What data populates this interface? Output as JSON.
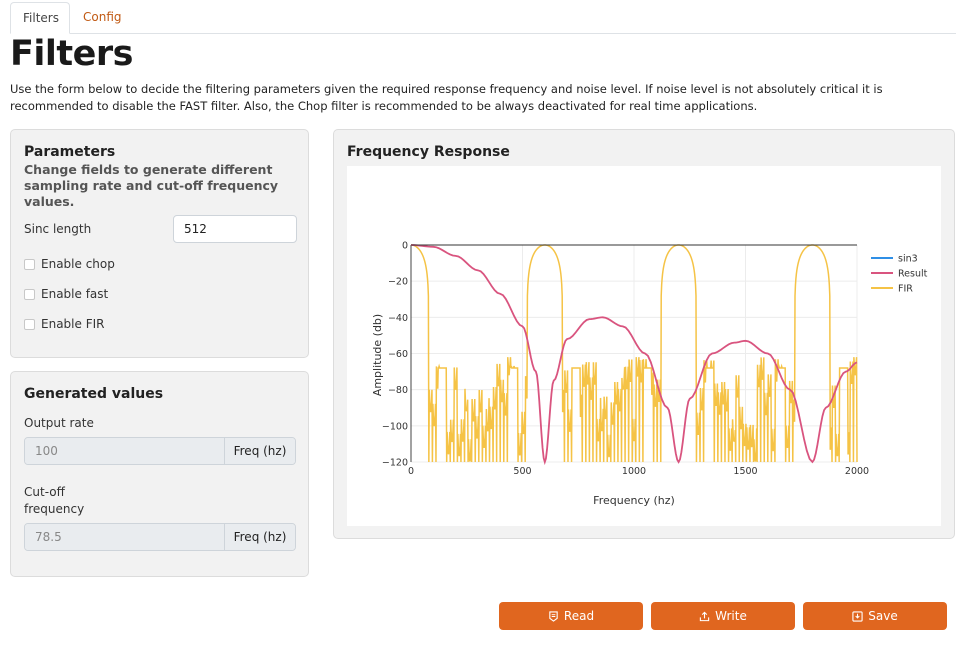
{
  "tabs": [
    {
      "label": "Filters",
      "active": true
    },
    {
      "label": "Config",
      "active": false
    }
  ],
  "page_title": "Filters",
  "intro": "Use the form below to decide the filtering parameters given the required response frequency and noise level. If noise level is not absolutely critical it is recommended to disable the FAST filter. Also, the Chop filter is recommended to be always deactivated for real time applications.",
  "parameters": {
    "title": "Parameters",
    "subtitle": "Change fields to generate different sampling rate and cut-off frequency values.",
    "sinc_length_label": "Sinc length",
    "sinc_length_value": "512",
    "checks": [
      {
        "label": "Enable chop",
        "checked": false
      },
      {
        "label": "Enable fast",
        "checked": false
      },
      {
        "label": "Enable FIR",
        "checked": false
      }
    ]
  },
  "generated": {
    "title": "Generated values",
    "output_rate_label": "Output rate",
    "output_rate_value": "100",
    "output_rate_unit": "Freq (hz)",
    "cutoff_label_line1": "Cut-off",
    "cutoff_label_line2": "frequency",
    "cutoff_value": "78.5",
    "cutoff_unit": "Freq (hz)"
  },
  "chart_title": "Frequency Response",
  "chart_data": {
    "type": "line",
    "title": "",
    "xlabel": "Frequency (hz)",
    "ylabel": "Amplitude (db)",
    "xlim": [
      0,
      2000
    ],
    "ylim": [
      -120,
      0
    ],
    "xticks": [
      "0",
      "500",
      "1000",
      "1500",
      "2000"
    ],
    "yticks": [
      "0",
      "−20",
      "−40",
      "−60",
      "−80",
      "−100",
      "−120"
    ],
    "grid": true,
    "legend_position": "top-right",
    "series": [
      {
        "name": "sin3",
        "color": "#2f8fe6",
        "description_points": [
          [
            0,
            0
          ],
          [
            2000,
            0
          ]
        ]
      },
      {
        "name": "Result",
        "color": "#d9547f",
        "description_points": [
          [
            0,
            0
          ],
          [
            100,
            -1
          ],
          [
            200,
            -6
          ],
          [
            300,
            -14
          ],
          [
            400,
            -27
          ],
          [
            500,
            -45
          ],
          [
            560,
            -70
          ],
          [
            600,
            -120
          ],
          [
            640,
            -75
          ],
          [
            700,
            -52
          ],
          [
            800,
            -41
          ],
          [
            860,
            -40
          ],
          [
            950,
            -45
          ],
          [
            1050,
            -60
          ],
          [
            1150,
            -90
          ],
          [
            1200,
            -120
          ],
          [
            1250,
            -85
          ],
          [
            1350,
            -60
          ],
          [
            1450,
            -54
          ],
          [
            1500,
            -53
          ],
          [
            1600,
            -60
          ],
          [
            1700,
            -80
          ],
          [
            1800,
            -120
          ],
          [
            1860,
            -90
          ],
          [
            1950,
            -70
          ],
          [
            2000,
            -65
          ]
        ]
      },
      {
        "name": "FIR",
        "color": "#f5c346",
        "lobe_centers": [
          0,
          600,
          1200,
          1800
        ],
        "lobe_half_width": 80,
        "floor": -120
      }
    ]
  },
  "buttons": {
    "read": "Read",
    "write": "Write",
    "save": "Save",
    "icons": [
      "read-icon",
      "upload-icon",
      "save-icon"
    ]
  }
}
